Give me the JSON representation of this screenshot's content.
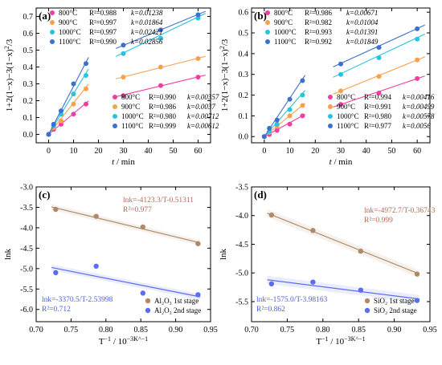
{
  "chart_data": [
    {
      "type": "scatter",
      "panel_label": "(a)",
      "xlabel": "t / min",
      "ylabel": "1+2(1−x)−3(1−x)^2/3",
      "xlim": [
        -5,
        65
      ],
      "ylim": [
        -0.05,
        0.75
      ],
      "xticks": [
        "0",
        "10",
        "20",
        "30",
        "40",
        "50",
        "60"
      ],
      "yticks": [
        "0.0",
        "0.1",
        "0.2",
        "0.3",
        "0.4",
        "0.5",
        "0.6",
        "0.7"
      ],
      "x_stage1": [
        0,
        2,
        5,
        10,
        15
      ],
      "x_stage2": [
        30,
        45,
        60
      ],
      "series": [
        {
          "name": "800°C",
          "color": "#ef3ea0",
          "y_stage1": [
            0.0,
            0.03,
            0.06,
            0.12,
            0.18
          ],
          "y_stage2": [
            0.23,
            0.29,
            0.34
          ],
          "fit1": [
            0,
            0.01238
          ],
          "fit2": [
            0.127,
            0.00357
          ],
          "legend1": {
            "temp": "800°C",
            "r2": "R²=0.988",
            "k": "k=0.01238"
          },
          "legend2": {
            "temp": "800°C",
            "r2": "R²=0.990",
            "k": "k=0.00357"
          }
        },
        {
          "name": "900°C",
          "color": "#f7a24b",
          "y_stage1": [
            0.0,
            0.04,
            0.08,
            0.18,
            0.27
          ],
          "y_stage2": [
            0.34,
            0.4,
            0.45
          ],
          "fit1": [
            0,
            0.01864
          ],
          "fit2": [
            0.23,
            0.0037
          ],
          "legend1": {
            "temp": "900°C",
            "r2": "R²=0.997",
            "k": "k=0.01864"
          },
          "legend2": {
            "temp": "900°C",
            "r2": "R²=0.986",
            "k": "k=0.0037"
          }
        },
        {
          "name": "1000°C",
          "color": "#26c4df",
          "y_stage1": [
            0.0,
            0.05,
            0.12,
            0.24,
            0.35
          ],
          "y_stage2": [
            0.48,
            0.57,
            0.69
          ],
          "fit1": [
            0,
            0.02421
          ],
          "fit2": [
            0.27,
            0.00712
          ],
          "legend1": {
            "temp": "1000°C",
            "r2": "R²=0.997",
            "k": "k=0.02421"
          },
          "legend2": {
            "temp": "1000°C",
            "r2": "R²=0.980",
            "k": "k=0.00712"
          }
        },
        {
          "name": "1100°C",
          "color": "#3d6fd1",
          "y_stage1": [
            0.0,
            0.06,
            0.14,
            0.3,
            0.42
          ],
          "y_stage2": [
            0.53,
            0.62,
            0.71
          ],
          "fit1": [
            0,
            0.02856
          ],
          "fit2": [
            0.345,
            0.00612
          ],
          "legend1": {
            "temp": "1100°C",
            "r2": "R²=0.990",
            "k": "k=0.02856"
          },
          "legend2": {
            "temp": "1100°C",
            "r2": "R²=0.999",
            "k": "k=0.00612"
          }
        }
      ]
    },
    {
      "type": "scatter",
      "panel_label": "(b)",
      "xlabel": "t / min",
      "ylabel": "1+2(1−x)−3(1−x)^2/3",
      "xlim": [
        -5,
        65
      ],
      "ylim": [
        -0.03,
        0.62
      ],
      "xticks": [
        "0",
        "10",
        "20",
        "30",
        "40",
        "50",
        "60"
      ],
      "yticks": [
        "0.0",
        "0.1",
        "0.2",
        "0.3",
        "0.4",
        "0.5",
        "0.6"
      ],
      "x_stage1": [
        0,
        2,
        5,
        10,
        15
      ],
      "x_stage2": [
        30,
        45,
        60
      ],
      "series": [
        {
          "name": "800°C",
          "color": "#ef3ea0",
          "y_stage1": [
            0.0,
            0.01,
            0.03,
            0.06,
            0.1
          ],
          "y_stage2": [
            0.155,
            0.21,
            0.28
          ],
          "fit1": [
            0,
            0.00671
          ],
          "fit2": [
            0.03,
            0.00416
          ],
          "legend1": {
            "temp": "800°C",
            "r2": "R²=0.986",
            "k": "k=0.00671"
          },
          "legend2": {
            "temp": "800°C",
            "r2": "R²=0.994",
            "k": "k=0.00416"
          }
        },
        {
          "name": "900°C",
          "color": "#f7a24b",
          "y_stage1": [
            0.0,
            0.02,
            0.05,
            0.1,
            0.15
          ],
          "y_stage2": [
            0.22,
            0.29,
            0.37
          ],
          "fit1": [
            0,
            0.01004
          ],
          "fit2": [
            0.07,
            0.00499
          ],
          "legend1": {
            "temp": "900°C",
            "r2": "R²=0.982",
            "k": "k=0.01004"
          },
          "legend2": {
            "temp": "900°C",
            "r2": "R²=0.991",
            "k": "k=0.00499"
          }
        },
        {
          "name": "1000°C",
          "color": "#26c4df",
          "y_stage1": [
            0.0,
            0.025,
            0.06,
            0.13,
            0.2
          ],
          "y_stage2": [
            0.3,
            0.38,
            0.47
          ],
          "fit1": [
            0,
            0.01391
          ],
          "fit2": [
            0.13,
            0.00578
          ],
          "legend1": {
            "temp": "1000°C",
            "r2": "R²=0.993",
            "k": "k=0.01391"
          },
          "legend2": {
            "temp": "1000°C",
            "r2": "R²=0.980",
            "k": "k=0.00578"
          }
        },
        {
          "name": "1100°C",
          "color": "#3d6fd1",
          "y_stage1": [
            0.0,
            0.04,
            0.08,
            0.18,
            0.27
          ],
          "y_stage2": [
            0.35,
            0.43,
            0.52
          ],
          "fit1": [
            0,
            0.01849
          ],
          "fit2": [
            0.185,
            0.0056
          ],
          "legend1": {
            "temp": "1100°C",
            "r2": "R²=0.992",
            "k": "k=0.01849"
          },
          "legend2": {
            "temp": "1100°C",
            "r2": "R²=0.977",
            "k": "k=0.0056"
          }
        }
      ]
    },
    {
      "type": "scatter",
      "panel_label": "(c)",
      "xlabel": "T^−1 / 10^−3K^−1",
      "ylabel": "lnk",
      "xlim": [
        0.7,
        0.95
      ],
      "ylim": [
        -6.3,
        -3.0
      ],
      "xticks": [
        "0.70",
        "0.75",
        "0.80",
        "0.85",
        "0.90",
        "0.95"
      ],
      "yticks": [
        "-3.0",
        "-3.5",
        "-4.0",
        "-4.5",
        "-5.0",
        "-5.5",
        "-6.0"
      ],
      "series": [
        {
          "name": "Al2O3 1st stage",
          "legend": "Al₂O₃ 1st stage",
          "color": "#b08a68",
          "x": [
            0.728,
            0.786,
            0.853,
            0.932
          ],
          "y": [
            -3.55,
            -3.72,
            -3.98,
            -4.39
          ],
          "fit": [
            -0.51311,
            -4.123
          ],
          "equation": "lnk=-4123.3/T-0.51311",
          "r2": "R²=0.977"
        },
        {
          "name": "Al2O3 2nd stage",
          "legend": "Al₂O₃ 2nd stage",
          "color": "#5a6cf0",
          "x": [
            0.728,
            0.786,
            0.853,
            0.932
          ],
          "y": [
            -5.1,
            -4.94,
            -5.6,
            -5.64
          ],
          "fit": [
            -2.53998,
            -3.3705
          ],
          "equation": "lnk=-3370.5/T-2.53998",
          "r2": "R²=0.712"
        }
      ]
    },
    {
      "type": "scatter",
      "panel_label": "(d)",
      "xlabel": "T^−1 / 10^−3K^−1",
      "ylabel": "lnk",
      "xlim": [
        0.7,
        0.95
      ],
      "ylim": [
        -5.85,
        -3.5
      ],
      "xticks": [
        "0.70",
        "0.75",
        "0.80",
        "0.85",
        "0.90",
        "0.95"
      ],
      "yticks": [
        "-3.5",
        "-4.0",
        "-4.5",
        "-5.0",
        "-5.5"
      ],
      "series": [
        {
          "name": "SiO2 1st stage",
          "legend": "SiO₂ 1st stage",
          "color": "#b08a68",
          "x": [
            0.728,
            0.786,
            0.853,
            0.932
          ],
          "y": [
            -3.99,
            -4.26,
            -4.62,
            -5.02
          ],
          "fit": [
            -0.36743,
            -4.9727
          ],
          "equation": "lnk=-4972.7/T-0.36743",
          "r2": "R²=0.999"
        },
        {
          "name": "SiO2 2nd stage",
          "legend": "SiO₂ 2nd stage",
          "color": "#5a6cf0",
          "x": [
            0.728,
            0.786,
            0.853,
            0.932
          ],
          "y": [
            -5.19,
            -5.16,
            -5.3,
            -5.48
          ],
          "fit": [
            -3.98163,
            -1.575
          ],
          "equation": "lnk=-1575.0/T-3.98163",
          "r2": "R²=0.862"
        }
      ]
    }
  ]
}
